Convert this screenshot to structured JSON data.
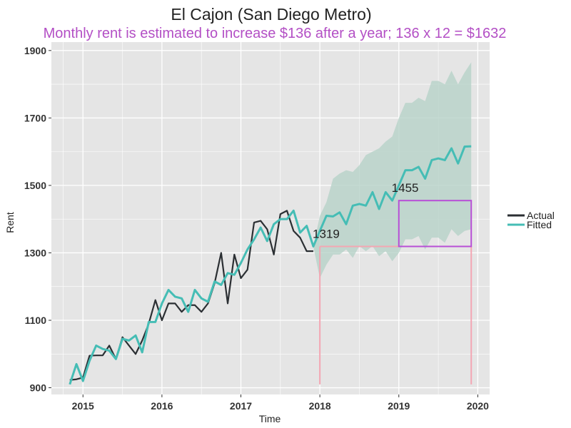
{
  "colors": {
    "panel": "#e5e5e5",
    "grid": "#ffffff",
    "actual": "#2b2f33",
    "fitted": "#45bdb5",
    "band": "#b7d2c8",
    "subtitle": "#b34fc5",
    "box": "#b84fd6",
    "pink": "#f4a6b3"
  },
  "chart_data": {
    "type": "line",
    "title": "El Cajon (San Diego Metro)",
    "subtitle": "Monthly rent is estimated to increase $136 after a year; 136 x 12 = $1632",
    "xlabel": "Time",
    "ylabel": "Rent",
    "xlim": [
      2014.6,
      2020.15
    ],
    "ylim": [
      880,
      1925
    ],
    "x_ticks": [
      2015,
      2016,
      2017,
      2018,
      2019,
      2020
    ],
    "x_tick_labels": [
      "2015",
      "2016",
      "2017",
      "2018",
      "2019",
      "2020"
    ],
    "y_ticks": [
      900,
      1100,
      1300,
      1500,
      1700,
      1900
    ],
    "y_tick_labels": [
      "900",
      "1100",
      "1300",
      "1500",
      "1700",
      "1900"
    ],
    "grid": true,
    "legend_position": "right",
    "series": [
      {
        "name": "Actual",
        "x": [
          2014.833,
          2014.917,
          2015.0,
          2015.083,
          2015.167,
          2015.25,
          2015.333,
          2015.417,
          2015.5,
          2015.583,
          2015.667,
          2015.75,
          2015.833,
          2015.917,
          2016.0,
          2016.083,
          2016.167,
          2016.25,
          2016.333,
          2016.417,
          2016.5,
          2016.583,
          2016.667,
          2016.75,
          2016.833,
          2016.917,
          2017.0,
          2017.083,
          2017.167,
          2017.25,
          2017.333,
          2017.417,
          2017.5,
          2017.583,
          2017.667,
          2017.75,
          2017.833,
          2017.917
        ],
        "values": [
          923,
          925,
          930,
          995,
          996,
          996,
          1025,
          985,
          1050,
          1025,
          1000,
          1040,
          1090,
          1160,
          1100,
          1150,
          1150,
          1125,
          1145,
          1145,
          1125,
          1150,
          1210,
          1300,
          1150,
          1295,
          1225,
          1250,
          1390,
          1395,
          1370,
          1295,
          1415,
          1425,
          1365,
          1345,
          1305,
          1305
        ]
      },
      {
        "name": "Fitted",
        "x": [
          2014.833,
          2014.917,
          2015.0,
          2015.083,
          2015.167,
          2015.25,
          2015.333,
          2015.417,
          2015.5,
          2015.583,
          2015.667,
          2015.75,
          2015.833,
          2015.917,
          2016.0,
          2016.083,
          2016.167,
          2016.25,
          2016.333,
          2016.417,
          2016.5,
          2016.583,
          2016.667,
          2016.75,
          2016.833,
          2016.917,
          2017.0,
          2017.083,
          2017.167,
          2017.25,
          2017.333,
          2017.417,
          2017.5,
          2017.583,
          2017.667,
          2017.75,
          2017.833,
          2017.917,
          2018.0,
          2018.083,
          2018.167,
          2018.25,
          2018.333,
          2018.417,
          2018.5,
          2018.583,
          2018.667,
          2018.75,
          2018.833,
          2018.917,
          2019.0,
          2019.083,
          2019.167,
          2019.25,
          2019.333,
          2019.417,
          2019.5,
          2019.583,
          2019.667,
          2019.75,
          2019.833,
          2019.917
        ],
        "values": [
          910,
          970,
          920,
          980,
          1025,
          1015,
          1010,
          985,
          1045,
          1040,
          1055,
          1005,
          1095,
          1095,
          1150,
          1190,
          1170,
          1165,
          1125,
          1190,
          1165,
          1155,
          1215,
          1205,
          1240,
          1235,
          1270,
          1310,
          1340,
          1375,
          1335,
          1385,
          1400,
          1400,
          1425,
          1360,
          1380,
          1319,
          1365,
          1410,
          1408,
          1420,
          1385,
          1440,
          1445,
          1440,
          1480,
          1430,
          1480,
          1455,
          1500,
          1545,
          1545,
          1555,
          1520,
          1575,
          1580,
          1575,
          1610,
          1565,
          1615,
          1616
        ]
      }
    ],
    "forecast_band": {
      "x": [
        2017.917,
        2018.0,
        2018.083,
        2018.167,
        2018.25,
        2018.333,
        2018.417,
        2018.5,
        2018.583,
        2018.667,
        2018.75,
        2018.833,
        2018.917,
        2019.0,
        2019.083,
        2019.167,
        2019.25,
        2019.333,
        2019.417,
        2019.5,
        2019.583,
        2019.667,
        2019.75,
        2019.833,
        2019.917
      ],
      "upper": [
        1319,
        1410,
        1450,
        1520,
        1535,
        1545,
        1540,
        1560,
        1590,
        1600,
        1610,
        1630,
        1645,
        1700,
        1745,
        1745,
        1760,
        1750,
        1810,
        1810,
        1800,
        1840,
        1800,
        1835,
        1865
      ],
      "lower": [
        1319,
        1225,
        1265,
        1295,
        1295,
        1310,
        1285,
        1320,
        1305,
        1320,
        1290,
        1305,
        1275,
        1300,
        1340,
        1340,
        1350,
        1310,
        1345,
        1345,
        1330,
        1370,
        1350,
        1365,
        1370
      ]
    },
    "annotations": [
      {
        "text": "1319",
        "x": 2017.917,
        "y": 1319
      },
      {
        "text": "1455",
        "x": 2018.917,
        "y": 1455
      }
    ],
    "guide_lines": {
      "start_x": 2018.0,
      "end_x": 2019.0,
      "far_x": 2019.917,
      "low_y": 1319,
      "high_y": 1455,
      "drop_y": 910
    }
  }
}
